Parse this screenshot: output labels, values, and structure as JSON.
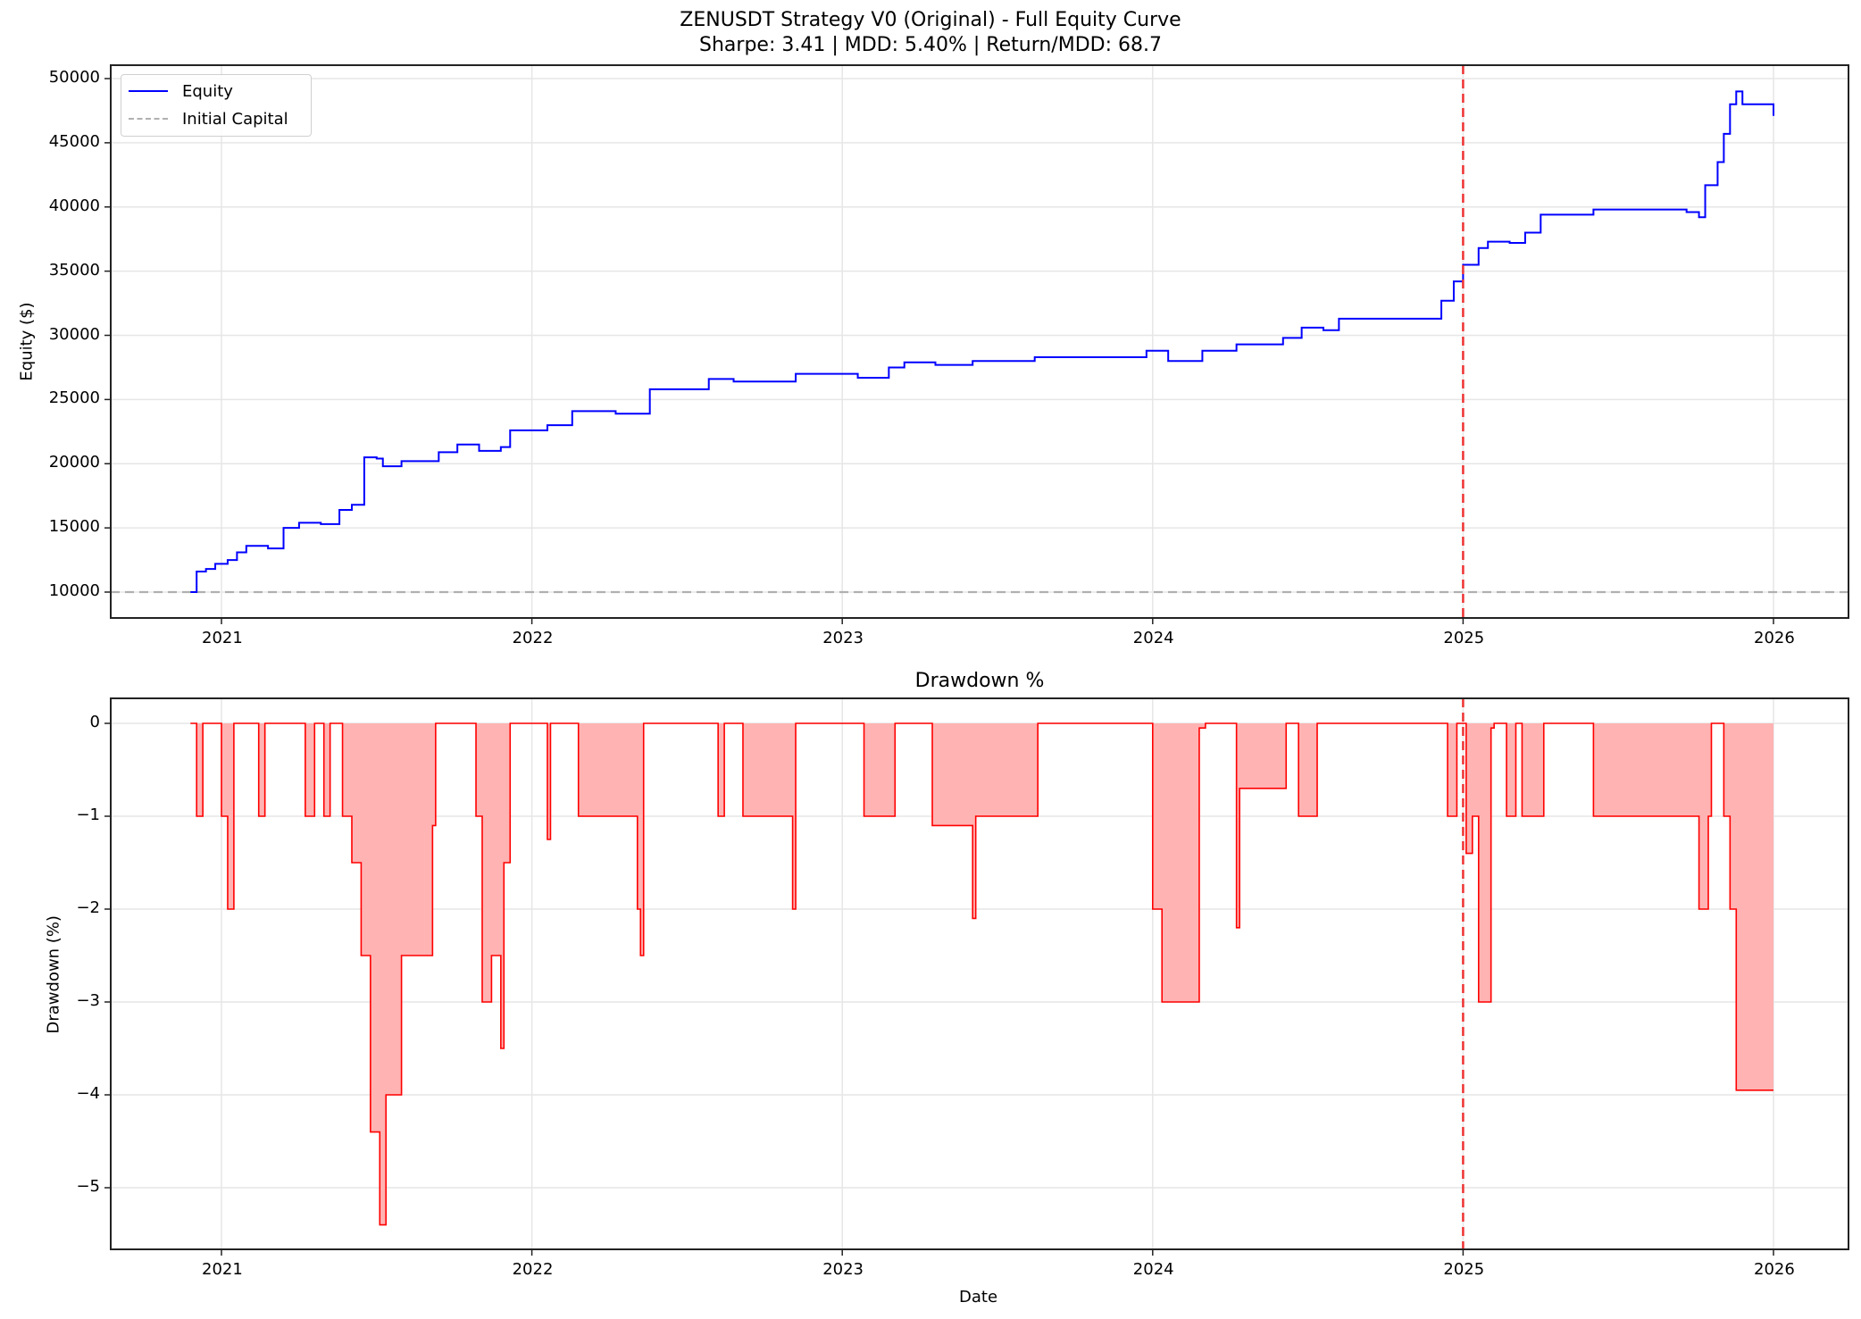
{
  "figure": {
    "title_line1": "ZENUSDT Strategy V0 (Original) - Full Equity Curve",
    "title_line2": "Sharpe: 3.41 | MDD: 5.40% | Return/MDD: 68.7"
  },
  "colors": {
    "equity": "#0000ff",
    "initial_capital": "#b0b0b0",
    "drawdown_line": "#ff0000",
    "drawdown_fill": "#ffb3b3",
    "split_marker": "#ee3333",
    "grid": "#e6e6e6"
  },
  "chart_data": [
    {
      "type": "line",
      "title": "ZENUSDT Strategy V0 (Original) - Full Equity Curve / Sharpe: 3.41 | MDD: 5.40% | Return/MDD: 68.7",
      "xlabel": "",
      "ylabel": "Equity ($)",
      "x_ticks": [
        "2021",
        "2022",
        "2023",
        "2024",
        "2025",
        "2026"
      ],
      "y_ticks": [
        "10000",
        "15000",
        "20000",
        "25000",
        "30000",
        "35000",
        "40000",
        "45000",
        "50000"
      ],
      "ylim": [
        8000,
        50900
      ],
      "grid": true,
      "legend": {
        "position": "upper left",
        "entries": [
          "Equity",
          "Initial Capital"
        ]
      },
      "annotations": [
        {
          "type": "vline",
          "x": 2025.0,
          "style": "dashed red"
        }
      ],
      "series": [
        {
          "name": "Equity",
          "step": true,
          "x": [
            2020.9,
            2020.92,
            2020.95,
            2020.98,
            2021.02,
            2021.05,
            2021.08,
            2021.15,
            2021.2,
            2021.25,
            2021.32,
            2021.38,
            2021.42,
            2021.46,
            2021.5,
            2021.52,
            2021.58,
            2021.7,
            2021.76,
            2021.83,
            2021.9,
            2021.93,
            2022.05,
            2022.13,
            2022.27,
            2022.38,
            2022.4,
            2022.57,
            2022.65,
            2022.85,
            2023.05,
            2023.15,
            2023.2,
            2023.3,
            2023.42,
            2023.62,
            2023.98,
            2024.05,
            2024.16,
            2024.27,
            2024.42,
            2024.48,
            2024.55,
            2024.6,
            2024.93,
            2024.97,
            2025.0,
            2025.05,
            2025.08,
            2025.15,
            2025.2,
            2025.25,
            2025.42,
            2025.72,
            2025.76,
            2025.78,
            2025.82,
            2025.84,
            2025.86,
            2025.88,
            2025.9,
            2026.0
          ],
          "values": [
            10000,
            11600,
            11800,
            12200,
            12500,
            13100,
            13600,
            13400,
            15000,
            15400,
            15300,
            16400,
            16800,
            20500,
            20400,
            19800,
            20200,
            20900,
            21500,
            21000,
            21300,
            22600,
            23000,
            24100,
            23900,
            25800,
            25800,
            26600,
            26400,
            27000,
            26700,
            27500,
            27900,
            27700,
            28000,
            28300,
            28800,
            28000,
            28800,
            29300,
            29800,
            30600,
            30400,
            31300,
            32700,
            34200,
            35500,
            36800,
            37300,
            37200,
            38000,
            39400,
            39800,
            39600,
            39200,
            41700,
            43500,
            45700,
            48000,
            49000,
            48000,
            47100
          ]
        },
        {
          "name": "Initial Capital",
          "step": false,
          "x": [
            2020.65,
            2026.25
          ],
          "values": [
            10000,
            10000
          ]
        }
      ]
    },
    {
      "type": "area",
      "title": "Drawdown %",
      "xlabel": "Date",
      "ylabel": "Drawdown (%)",
      "x_ticks": [
        "2021",
        "2022",
        "2023",
        "2024",
        "2025",
        "2026"
      ],
      "y_ticks": [
        "0",
        "−1",
        "−2",
        "−3",
        "−4",
        "−5"
      ],
      "ylim": [
        -5.65,
        0.28
      ],
      "grid": true,
      "annotations": [
        {
          "type": "vline",
          "x": 2025.0,
          "style": "dashed red"
        }
      ],
      "series": [
        {
          "name": "Drawdown",
          "step": true,
          "x": [
            2020.9,
            2020.92,
            2020.94,
            2021.0,
            2021.02,
            2021.04,
            2021.12,
            2021.14,
            2021.27,
            2021.3,
            2021.33,
            2021.35,
            2021.39,
            2021.42,
            2021.45,
            2021.48,
            2021.51,
            2021.53,
            2021.58,
            2021.68,
            2021.69,
            2021.82,
            2021.84,
            2021.87,
            2021.9,
            2021.91,
            2021.93,
            2022.05,
            2022.06,
            2022.15,
            2022.34,
            2022.35,
            2022.36,
            2022.6,
            2022.62,
            2022.68,
            2022.84,
            2022.85,
            2023.07,
            2023.17,
            2023.29,
            2023.3,
            2023.42,
            2023.43,
            2023.44,
            2023.63,
            2024.0,
            2024.03,
            2024.15,
            2024.17,
            2024.27,
            2024.28,
            2024.43,
            2024.47,
            2024.53,
            2024.95,
            2024.98,
            2025.01,
            2025.03,
            2025.05,
            2025.09,
            2025.1,
            2025.14,
            2025.17,
            2025.19,
            2025.26,
            2025.42,
            2025.76,
            2025.79,
            2025.8,
            2025.84,
            2025.86,
            2025.88,
            2026.0
          ],
          "values": [
            0,
            -1.0,
            0,
            -1.0,
            -2.0,
            0,
            -1.0,
            0,
            -1.0,
            0,
            -1.0,
            0,
            -1.0,
            -1.5,
            -2.5,
            -4.4,
            -5.4,
            -4.0,
            -2.5,
            -1.1,
            0,
            -1.0,
            -3.0,
            -2.5,
            -3.5,
            -1.5,
            0,
            -1.25,
            0,
            -1.0,
            -2.0,
            -2.5,
            0,
            -1.0,
            0,
            -1.0,
            -2.0,
            0,
            -1.0,
            0,
            -1.1,
            -1.1,
            -2.1,
            -1.0,
            -1.0,
            0,
            -2.0,
            -3.0,
            -0.05,
            0,
            -2.2,
            -0.7,
            0,
            -1.0,
            0,
            -1.0,
            0,
            -1.4,
            -1.0,
            -3.0,
            -0.05,
            0,
            -1.0,
            0,
            -1.0,
            0,
            -1.0,
            -2.0,
            -1.0,
            0,
            -1.0,
            -2.0,
            -3.95,
            -3.95
          ]
        }
      ]
    }
  ],
  "axes": {
    "top": {
      "ylabel": "Equity ($)",
      "y_ticks": [
        {
          "label": "10000",
          "v": 10000
        },
        {
          "label": "15000",
          "v": 15000
        },
        {
          "label": "20000",
          "v": 20000
        },
        {
          "label": "25000",
          "v": 25000
        },
        {
          "label": "30000",
          "v": 30000
        },
        {
          "label": "35000",
          "v": 35000
        },
        {
          "label": "40000",
          "v": 40000
        },
        {
          "label": "45000",
          "v": 45000
        },
        {
          "label": "50000",
          "v": 50000
        }
      ],
      "legend": {
        "equity": "Equity",
        "initial": "Initial Capital"
      }
    },
    "bottom": {
      "title": "Drawdown %",
      "ylabel": "Drawdown (%)",
      "xlabel": "Date",
      "y_ticks": [
        {
          "label": "0",
          "v": 0
        },
        {
          "label": "−1",
          "v": -1
        },
        {
          "label": "−2",
          "v": -2
        },
        {
          "label": "−3",
          "v": -3
        },
        {
          "label": "−4",
          "v": -4
        },
        {
          "label": "−5",
          "v": -5
        }
      ]
    },
    "x_ticks": [
      {
        "label": "2021",
        "v": 2021
      },
      {
        "label": "2022",
        "v": 2022
      },
      {
        "label": "2023",
        "v": 2023
      },
      {
        "label": "2024",
        "v": 2024
      },
      {
        "label": "2025",
        "v": 2025
      },
      {
        "label": "2026",
        "v": 2026
      }
    ]
  }
}
